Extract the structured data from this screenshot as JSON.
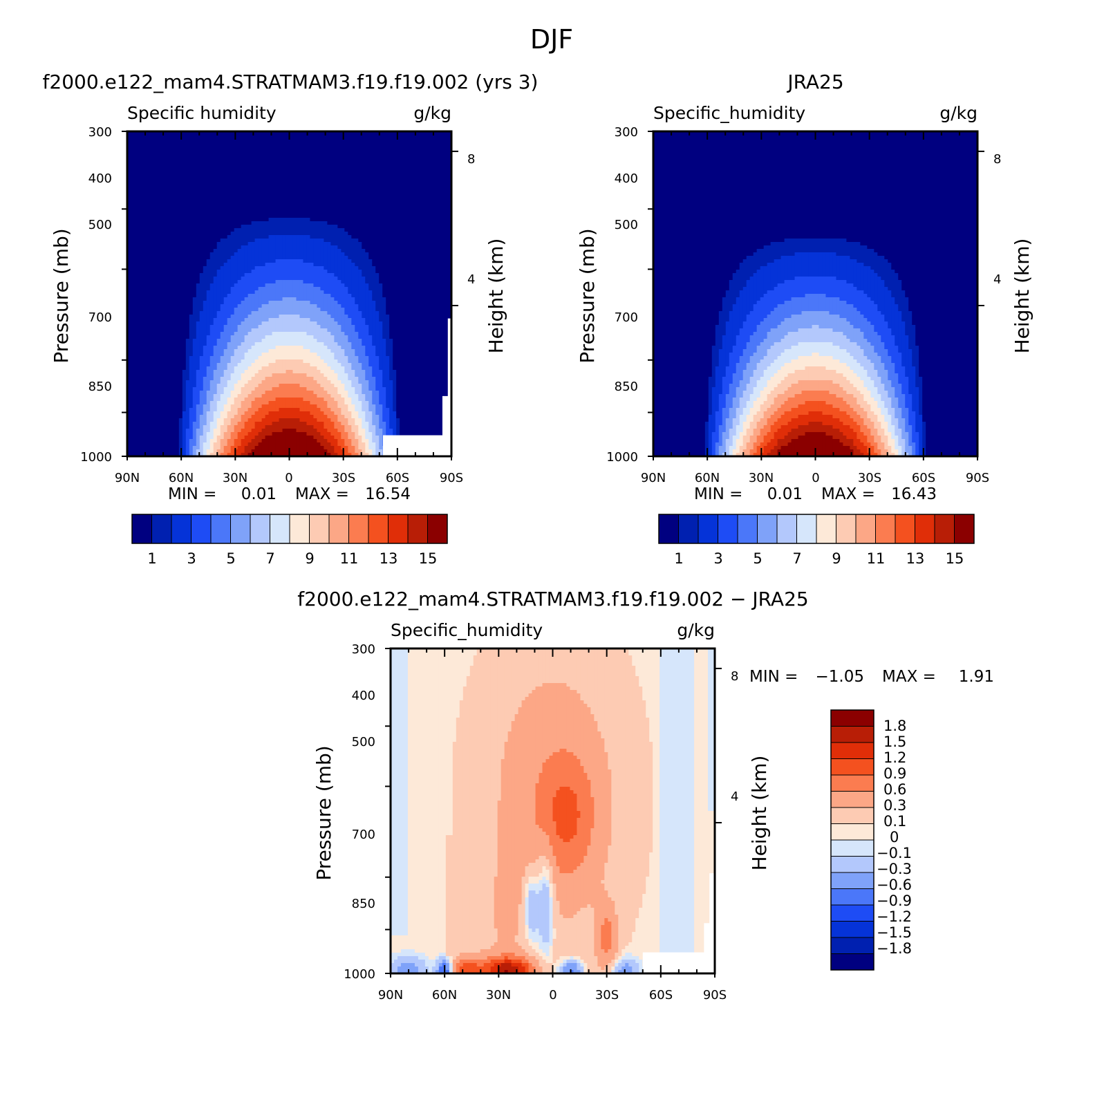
{
  "figure": {
    "title": "DJF"
  },
  "colors": {
    "abs_palette": [
      "#000080",
      "#0020b0",
      "#0533d8",
      "#1e4cf5",
      "#4b77f9",
      "#7fa2f9",
      "#b3c8fc",
      "#d6e6fb",
      "#fde9d8",
      "#fdcbb3",
      "#fca786",
      "#fb7c50",
      "#f4511f",
      "#e02e08",
      "#b81e06",
      "#8b0000"
    ],
    "diff_palette": [
      "#000080",
      "#0020b0",
      "#0533d8",
      "#1e4cf5",
      "#4b77f9",
      "#7fa2f9",
      "#b3c8fc",
      "#d6e6fb",
      "#fde9d8",
      "#fdcbb3",
      "#fca786",
      "#fb7c50",
      "#f4511f",
      "#e02e08",
      "#b81e06",
      "#8b0000"
    ]
  },
  "chart_data": [
    {
      "type": "heatmap",
      "title": "f2000.e122_mam4.STRATMAM3.f19.f19.002 (yrs 3)",
      "left_label": "Specific humidity",
      "right_label": "g/kg",
      "ylabel": "Pressure (mb)",
      "y2label": "Height (km)",
      "xticks": [
        "90N",
        "60N",
        "30N",
        "0",
        "30S",
        "60S",
        "90S"
      ],
      "yticks": [
        "300",
        "400",
        "500",
        "700",
        "850",
        "1000"
      ],
      "y2ticks": [
        "8",
        "4"
      ],
      "min_label": "MIN =",
      "min_value": "0.01",
      "max_label": "MAX =",
      "max_value": "16.54",
      "colorbar_labels": [
        "1",
        "3",
        "5",
        "7",
        "9",
        "11",
        "13",
        "15"
      ],
      "colorbar_levels": [
        0.5,
        1,
        2,
        3,
        4,
        5,
        6,
        7,
        8,
        9,
        10,
        11,
        12,
        13,
        14,
        15
      ],
      "center_lat": 0,
      "peak": 16.54,
      "top_pressure": 370,
      "half_width_lat": 62
    },
    {
      "type": "heatmap",
      "title": "JRA25",
      "left_label": "Specific_humidity",
      "right_label": "g/kg",
      "ylabel": "Pressure (mb)",
      "y2label": "Height (km)",
      "xticks": [
        "90N",
        "60N",
        "30N",
        "0",
        "30S",
        "60S",
        "90S"
      ],
      "yticks": [
        "300",
        "400",
        "500",
        "700",
        "850",
        "1000"
      ],
      "y2ticks": [
        "8",
        "4"
      ],
      "min_label": "MIN =",
      "min_value": "0.01",
      "max_label": "MAX =",
      "max_value": "16.43",
      "colorbar_labels": [
        "1",
        "3",
        "5",
        "7",
        "9",
        "11",
        "13",
        "15"
      ],
      "colorbar_levels": [
        0.5,
        1,
        2,
        3,
        4,
        5,
        6,
        7,
        8,
        9,
        10,
        11,
        12,
        13,
        14,
        15
      ],
      "center_lat": 0,
      "peak": 16.43,
      "top_pressure": 400,
      "half_width_lat": 62
    },
    {
      "type": "heatmap",
      "title": "f2000.e122_mam4.STRATMAM3.f19.f19.002 − JRA25",
      "left_label": "Specific_humidity",
      "right_label": "g/kg",
      "ylabel": "Pressure (mb)",
      "y2label": "Height (km)",
      "xticks": [
        "90N",
        "60N",
        "30N",
        "0",
        "30S",
        "60S",
        "90S"
      ],
      "yticks": [
        "300",
        "400",
        "500",
        "700",
        "850",
        "1000"
      ],
      "y2ticks": [
        "8",
        "4"
      ],
      "min_label": "MIN =",
      "min_value": "−1.05",
      "max_label": "MAX =",
      "max_value": "1.91",
      "colorbar_labels": [
        "1.8",
        "1.5",
        "1.2",
        "0.9",
        "0.6",
        "0.3",
        "0.1",
        "0",
        "−0.1",
        "−0.3",
        "−0.6",
        "−0.9",
        "−1.2",
        "−1.5",
        "−1.8"
      ],
      "colorbar_levels": [
        -1.8,
        -1.5,
        -1.2,
        -0.9,
        -0.6,
        -0.3,
        -0.1,
        0,
        0.1,
        0.3,
        0.6,
        0.9,
        1.2,
        1.5,
        1.8
      ]
    }
  ]
}
